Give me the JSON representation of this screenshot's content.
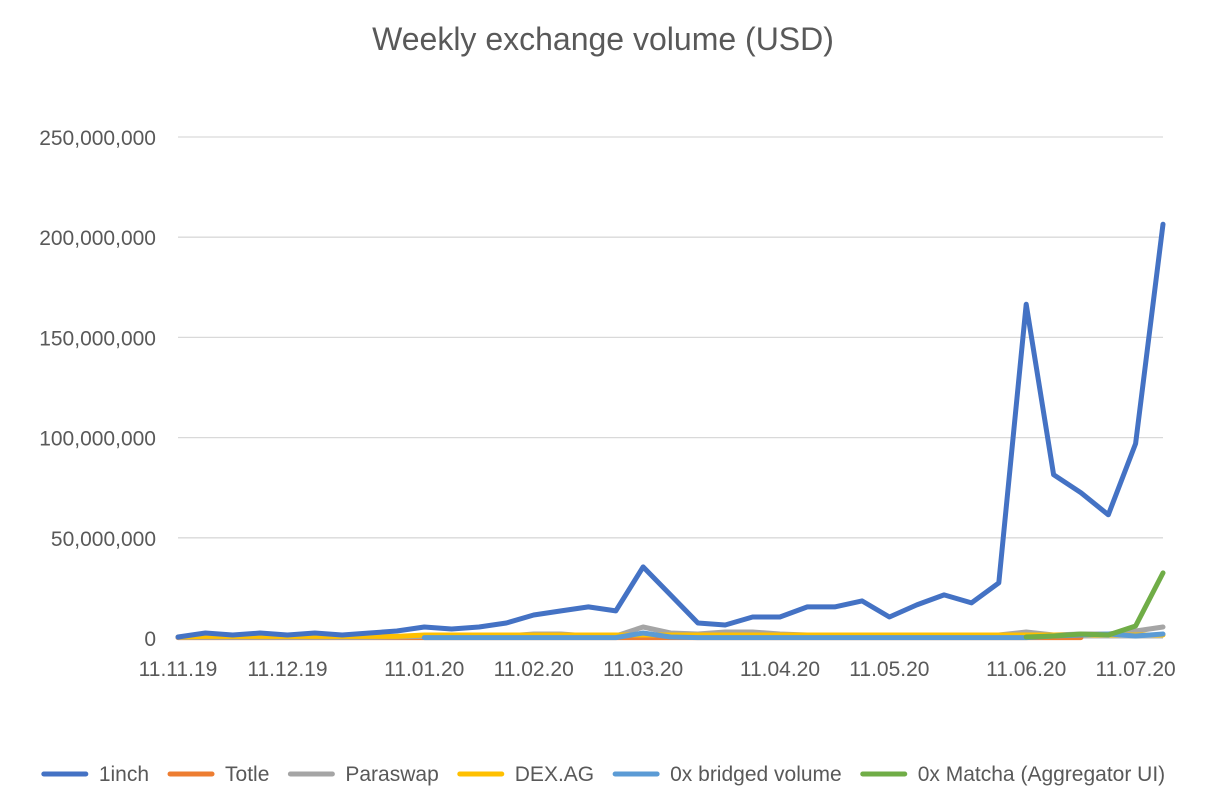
{
  "chart_data": {
    "type": "line",
    "title": "Weekly exchange volume (USD)",
    "xlabel": "",
    "ylabel": "",
    "ylim": [
      0,
      250000000
    ],
    "yticks": [
      0,
      50000000,
      100000000,
      150000000,
      200000000,
      250000000
    ],
    "ytick_labels": [
      "0",
      "50,000,000",
      "100,000,000",
      "150,000,000",
      "200,000,000",
      "250,000,000"
    ],
    "x_count": 37,
    "xtick_labels": [
      {
        "index": 0,
        "label": "11.11.19"
      },
      {
        "index": 4,
        "label": "11.12.19"
      },
      {
        "index": 9,
        "label": "11.01.20"
      },
      {
        "index": 13,
        "label": "11.02.20"
      },
      {
        "index": 17,
        "label": "11.03.20"
      },
      {
        "index": 22,
        "label": "11.04.20"
      },
      {
        "index": 26,
        "label": "11.05.20"
      },
      {
        "index": 31,
        "label": "11.06.20"
      },
      {
        "index": 35,
        "label": "11.07.20"
      }
    ],
    "grid": true,
    "legend_position": "bottom",
    "series": [
      {
        "name": "1inch",
        "color": "#4472c4",
        "start": 0,
        "values": [
          500000,
          2500000,
          1500000,
          2500000,
          1500000,
          2500000,
          1500000,
          2500000,
          3500000,
          5500000,
          4500000,
          5500000,
          7500000,
          11500000,
          13500000,
          15500000,
          13500000,
          35500000,
          21500000,
          7500000,
          6500000,
          10500000,
          10500000,
          15500000,
          15500000,
          18500000,
          10500000,
          16500000,
          21500000,
          17500000,
          27500000,
          166500000,
          81500000,
          72500000,
          61500000,
          97000000,
          206500000
        ]
      },
      {
        "name": "Totle",
        "color": "#ed7d31",
        "start": 0,
        "values": [
          200000,
          200000,
          200000,
          200000,
          200000,
          200000,
          200000,
          200000,
          200000,
          200000,
          200000,
          200000,
          200000,
          200000,
          200000,
          200000,
          200000,
          200000,
          200000,
          200000,
          200000,
          200000,
          200000,
          200000,
          200000,
          200000,
          200000,
          200000,
          200000,
          200000,
          200000,
          200000,
          200000,
          200000
        ]
      },
      {
        "name": "Paraswap",
        "color": "#a5a5a5",
        "start": 0,
        "values": [
          300000,
          300000,
          300000,
          300000,
          300000,
          300000,
          300000,
          300000,
          500000,
          800000,
          800000,
          1000000,
          1000000,
          2000000,
          2000000,
          1000000,
          1000000,
          5500000,
          2500000,
          2000000,
          3000000,
          3000000,
          2000000,
          1500000,
          1500000,
          1500000,
          1500000,
          1500000,
          1500000,
          1500000,
          1500000,
          3000000,
          1500000,
          2000000,
          2000000,
          3500000,
          5500000
        ]
      },
      {
        "name": "DEX.AG",
        "color": "#ffc000",
        "start": 0,
        "values": [
          500000,
          800000,
          800000,
          800000,
          800000,
          800000,
          800000,
          800000,
          800000,
          1500000,
          1500000,
          1500000,
          1500000,
          1500000,
          1500000,
          1500000,
          1500000,
          1500000,
          1500000,
          1500000,
          1500000,
          1500000,
          1500000,
          1500000,
          1500000,
          1500000,
          1500000,
          1500000,
          1500000,
          1500000,
          1500000,
          1500000,
          1500000,
          1500000,
          1500000,
          1500000,
          1500000
        ]
      },
      {
        "name": "0x bridged volume",
        "color": "#5b9bd5",
        "start": 9,
        "values": [
          200000,
          200000,
          200000,
          200000,
          200000,
          200000,
          200000,
          200000,
          2500000,
          500000,
          200000,
          200000,
          200000,
          200000,
          200000,
          200000,
          200000,
          200000,
          200000,
          200000,
          200000,
          200000,
          200000,
          1000000,
          1500000,
          2000000,
          1000000,
          2000000
        ]
      },
      {
        "name": "0x Matcha (Aggregator UI)",
        "color": "#70ad47",
        "start": 31,
        "values": [
          500000,
          1000000,
          2000000,
          1500000,
          6000000,
          32500000
        ]
      }
    ]
  }
}
